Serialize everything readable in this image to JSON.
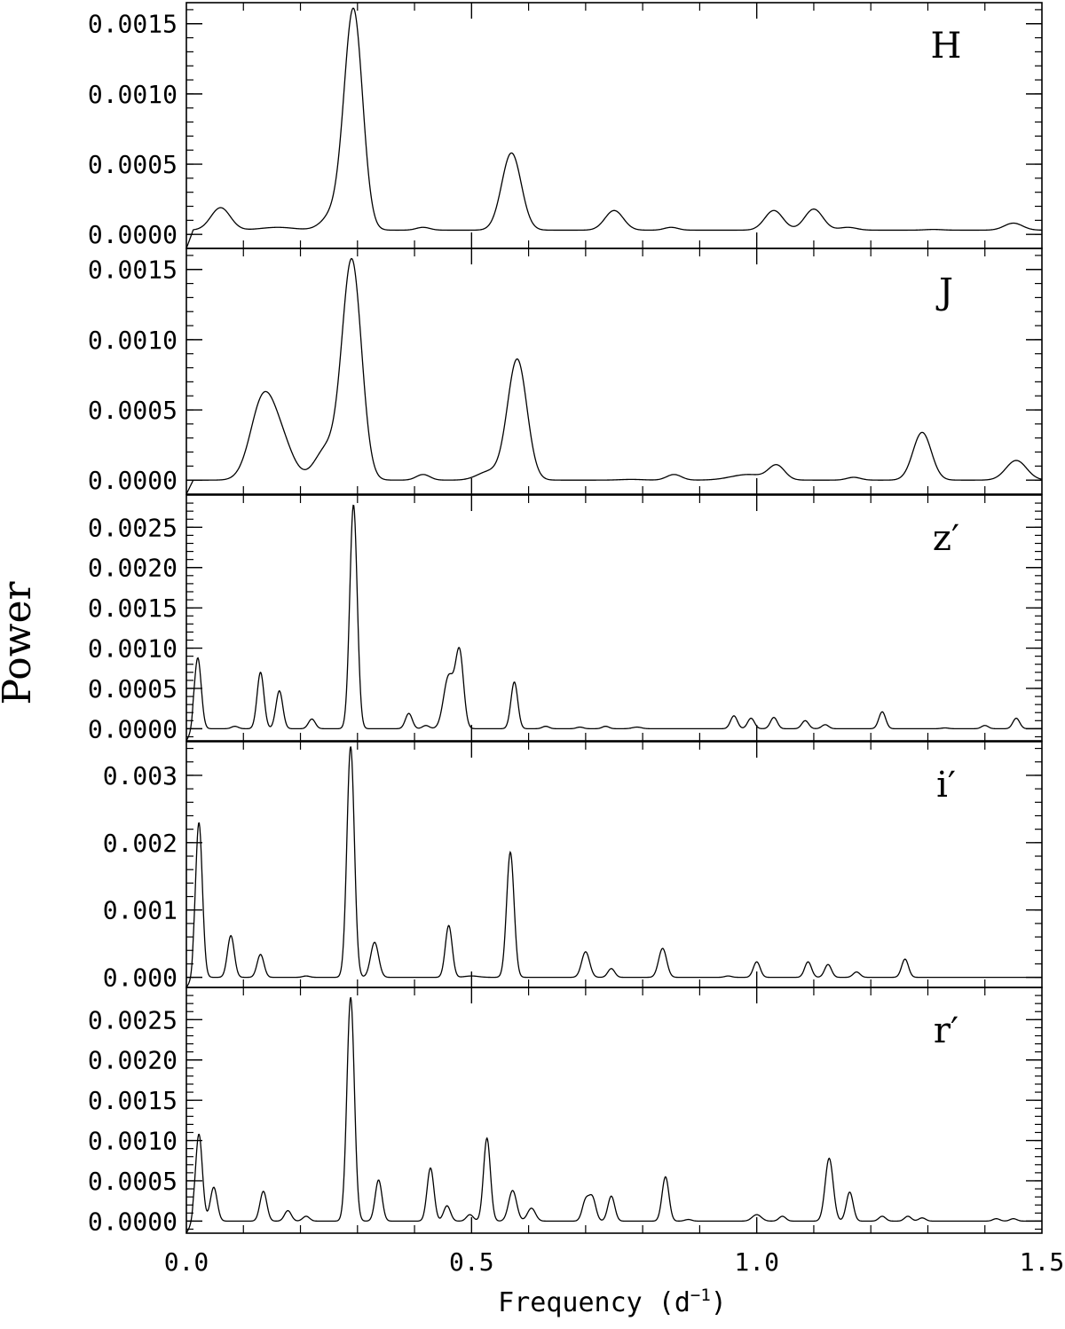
{
  "chart_data": {
    "type": "line",
    "xlabel": "Frequency (d",
    "xlabel_sup": "−1",
    "xlabel_close": ")",
    "ylabel": "Power",
    "xlim": [
      0.0,
      1.5
    ],
    "x_ticks": [
      "0.0",
      "0.5",
      "1.0",
      "1.5"
    ],
    "x_tick_values": [
      0.0,
      0.5,
      1.0,
      1.5
    ],
    "panels": [
      {
        "name": "H",
        "label": "H",
        "ylim": [
          -0.0001,
          0.00165
        ],
        "y_ticks": [
          "0.0000",
          "0.0005",
          "0.0010",
          "0.0015"
        ],
        "y_tick_values": [
          0.0,
          0.0005,
          0.001,
          0.0015
        ],
        "minor_step": 0.0001,
        "baseline": 3e-05,
        "peaks": [
          {
            "f": 0.06,
            "p": 0.00016,
            "w": 0.017
          },
          {
            "f": 0.16,
            "p": 2e-05,
            "w": 0.03
          },
          {
            "f": 0.26,
            "p": 0.00012,
            "w": 0.02
          },
          {
            "f": 0.293,
            "p": 0.00155,
            "w": 0.016
          },
          {
            "f": 0.415,
            "p": 2e-05,
            "w": 0.012
          },
          {
            "f": 0.57,
            "p": 0.00055,
            "w": 0.017
          },
          {
            "f": 0.75,
            "p": 0.00014,
            "w": 0.016
          },
          {
            "f": 0.85,
            "p": 2e-05,
            "w": 0.012
          },
          {
            "f": 1.03,
            "p": 0.00014,
            "w": 0.016
          },
          {
            "f": 1.1,
            "p": 0.00015,
            "w": 0.016
          },
          {
            "f": 1.16,
            "p": 2e-05,
            "w": 0.015
          },
          {
            "f": 1.31,
            "p": 5e-06,
            "w": 0.015
          },
          {
            "f": 1.45,
            "p": 5e-05,
            "w": 0.016
          }
        ]
      },
      {
        "name": "J",
        "label": "J",
        "ylim": [
          -0.0001,
          0.00165
        ],
        "y_ticks": [
          "0.0000",
          "0.0005",
          "0.0010",
          "0.0015"
        ],
        "y_tick_values": [
          0.0,
          0.0005,
          0.001,
          0.0015
        ],
        "minor_step": 0.0001,
        "baseline": 0.0,
        "peaks": [
          {
            "f": 0.135,
            "p": 0.00058,
            "w": 0.022
          },
          {
            "f": 0.17,
            "p": 0.0002,
            "w": 0.02
          },
          {
            "f": 0.245,
            "p": 0.00022,
            "w": 0.02
          },
          {
            "f": 0.29,
            "p": 0.00156,
            "w": 0.017
          },
          {
            "f": 0.415,
            "p": 4e-05,
            "w": 0.012
          },
          {
            "f": 0.53,
            "p": 6e-05,
            "w": 0.02
          },
          {
            "f": 0.58,
            "p": 0.00086,
            "w": 0.017
          },
          {
            "f": 0.78,
            "p": 5e-06,
            "w": 0.02
          },
          {
            "f": 0.855,
            "p": 4e-05,
            "w": 0.013
          },
          {
            "f": 0.985,
            "p": 4e-05,
            "w": 0.03
          },
          {
            "f": 1.035,
            "p": 0.0001,
            "w": 0.014
          },
          {
            "f": 1.17,
            "p": 2e-05,
            "w": 0.012
          },
          {
            "f": 1.29,
            "p": 0.00034,
            "w": 0.016
          },
          {
            "f": 1.455,
            "p": 0.00014,
            "w": 0.018
          }
        ]
      },
      {
        "name": "z′",
        "label": "z′",
        "ylim": [
          -0.00015,
          0.0029
        ],
        "y_ticks": [
          "0.0000",
          "0.0005",
          "0.0010",
          "0.0015",
          "0.0020",
          "0.0025"
        ],
        "y_tick_values": [
          0.0,
          0.0005,
          0.001,
          0.0015,
          0.002,
          0.0025
        ],
        "minor_step": 0.0001,
        "baseline": 0.0,
        "peaks": [
          {
            "f": 0.02,
            "p": 0.00088,
            "w": 0.006
          },
          {
            "f": 0.085,
            "p": 3e-05,
            "w": 0.006
          },
          {
            "f": 0.13,
            "p": 0.0007,
            "w": 0.006
          },
          {
            "f": 0.163,
            "p": 0.00047,
            "w": 0.006
          },
          {
            "f": 0.22,
            "p": 0.00012,
            "w": 0.006
          },
          {
            "f": 0.293,
            "p": 0.00278,
            "w": 0.0065
          },
          {
            "f": 0.39,
            "p": 0.00019,
            "w": 0.006
          },
          {
            "f": 0.42,
            "p": 4e-05,
            "w": 0.006
          },
          {
            "f": 0.46,
            "p": 0.00065,
            "w": 0.009
          },
          {
            "f": 0.479,
            "p": 0.00093,
            "w": 0.007
          },
          {
            "f": 0.575,
            "p": 0.00058,
            "w": 0.006
          },
          {
            "f": 0.63,
            "p": 3e-05,
            "w": 0.006
          },
          {
            "f": 0.69,
            "p": 2e-05,
            "w": 0.006
          },
          {
            "f": 0.735,
            "p": 3e-05,
            "w": 0.006
          },
          {
            "f": 0.79,
            "p": 2e-05,
            "w": 0.008
          },
          {
            "f": 0.96,
            "p": 0.00016,
            "w": 0.006
          },
          {
            "f": 0.99,
            "p": 0.00013,
            "w": 0.006
          },
          {
            "f": 1.03,
            "p": 0.00014,
            "w": 0.006
          },
          {
            "f": 1.085,
            "p": 0.0001,
            "w": 0.006
          },
          {
            "f": 1.12,
            "p": 5e-05,
            "w": 0.006
          },
          {
            "f": 1.22,
            "p": 0.00021,
            "w": 0.006
          },
          {
            "f": 1.33,
            "p": 1e-05,
            "w": 0.006
          },
          {
            "f": 1.4,
            "p": 4e-05,
            "w": 0.006
          },
          {
            "f": 1.455,
            "p": 0.00013,
            "w": 0.006
          }
        ]
      },
      {
        "name": "i′",
        "label": "i′",
        "ylim": [
          -0.00015,
          0.0035
        ],
        "y_ticks": [
          "0.000",
          "0.001",
          "0.002",
          "0.003"
        ],
        "y_tick_values": [
          0.0,
          0.001,
          0.002,
          0.003
        ],
        "minor_step": 0.0002,
        "baseline": 0.0,
        "peaks": [
          {
            "f": 0.022,
            "p": 0.0023,
            "w": 0.006
          },
          {
            "f": 0.078,
            "p": 0.00062,
            "w": 0.006
          },
          {
            "f": 0.13,
            "p": 0.00034,
            "w": 0.006
          },
          {
            "f": 0.21,
            "p": 2e-05,
            "w": 0.006
          },
          {
            "f": 0.288,
            "p": 0.00343,
            "w": 0.0065
          },
          {
            "f": 0.33,
            "p": 0.00052,
            "w": 0.007
          },
          {
            "f": 0.46,
            "p": 0.00077,
            "w": 0.006
          },
          {
            "f": 0.5,
            "p": 2e-05,
            "w": 0.012
          },
          {
            "f": 0.568,
            "p": 0.00186,
            "w": 0.0065
          },
          {
            "f": 0.7,
            "p": 0.00038,
            "w": 0.007
          },
          {
            "f": 0.745,
            "p": 0.00013,
            "w": 0.006
          },
          {
            "f": 0.835,
            "p": 0.00043,
            "w": 0.007
          },
          {
            "f": 0.95,
            "p": 2e-05,
            "w": 0.006
          },
          {
            "f": 1.0,
            "p": 0.00023,
            "w": 0.006
          },
          {
            "f": 1.09,
            "p": 0.00023,
            "w": 0.006
          },
          {
            "f": 1.125,
            "p": 0.00019,
            "w": 0.006
          },
          {
            "f": 1.175,
            "p": 8e-05,
            "w": 0.006
          },
          {
            "f": 1.26,
            "p": 0.00027,
            "w": 0.006
          }
        ]
      },
      {
        "name": "r′",
        "label": "r′",
        "ylim": [
          -0.00015,
          0.0029
        ],
        "y_ticks": [
          "0.0000",
          "0.0005",
          "0.0010",
          "0.0015",
          "0.0020",
          "0.0025"
        ],
        "y_tick_values": [
          0.0,
          0.0005,
          0.001,
          0.0015,
          0.002,
          0.0025
        ],
        "minor_step": 0.0001,
        "baseline": 0.0,
        "peaks": [
          {
            "f": 0.022,
            "p": 0.00108,
            "w": 0.006
          },
          {
            "f": 0.048,
            "p": 0.00042,
            "w": 0.006
          },
          {
            "f": 0.135,
            "p": 0.00037,
            "w": 0.006
          },
          {
            "f": 0.178,
            "p": 0.00013,
            "w": 0.006
          },
          {
            "f": 0.21,
            "p": 6e-05,
            "w": 0.006
          },
          {
            "f": 0.288,
            "p": 0.00278,
            "w": 0.0065
          },
          {
            "f": 0.337,
            "p": 0.00051,
            "w": 0.006
          },
          {
            "f": 0.428,
            "p": 0.00066,
            "w": 0.006
          },
          {
            "f": 0.457,
            "p": 0.00019,
            "w": 0.006
          },
          {
            "f": 0.497,
            "p": 8e-05,
            "w": 0.006
          },
          {
            "f": 0.527,
            "p": 0.00103,
            "w": 0.006
          },
          {
            "f": 0.572,
            "p": 0.00038,
            "w": 0.007
          },
          {
            "f": 0.605,
            "p": 0.00016,
            "w": 0.007
          },
          {
            "f": 0.7,
            "p": 0.00025,
            "w": 0.006
          },
          {
            "f": 0.712,
            "p": 0.00028,
            "w": 0.006
          },
          {
            "f": 0.745,
            "p": 0.00031,
            "w": 0.006
          },
          {
            "f": 0.84,
            "p": 0.00055,
            "w": 0.006
          },
          {
            "f": 0.88,
            "p": 2e-05,
            "w": 0.006
          },
          {
            "f": 1.0,
            "p": 8e-05,
            "w": 0.008
          },
          {
            "f": 1.045,
            "p": 6e-05,
            "w": 0.006
          },
          {
            "f": 1.127,
            "p": 0.00078,
            "w": 0.007
          },
          {
            "f": 1.163,
            "p": 0.00036,
            "w": 0.006
          },
          {
            "f": 1.22,
            "p": 6e-05,
            "w": 0.006
          },
          {
            "f": 1.265,
            "p": 6e-05,
            "w": 0.006
          },
          {
            "f": 1.29,
            "p": 4e-05,
            "w": 0.006
          },
          {
            "f": 1.42,
            "p": 3e-05,
            "w": 0.006
          },
          {
            "f": 1.45,
            "p": 3e-05,
            "w": 0.006
          }
        ]
      }
    ]
  }
}
